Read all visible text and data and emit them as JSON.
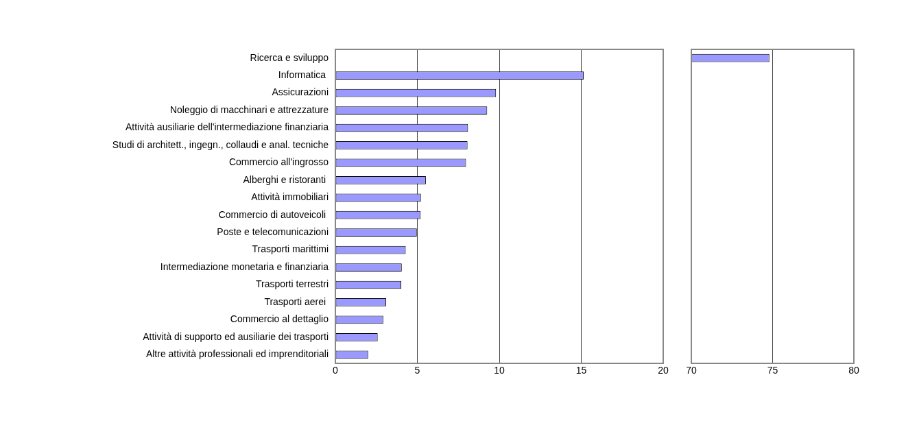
{
  "chart_data": [
    {
      "type": "bar",
      "orientation": "horizontal",
      "categories": [
        "Ricerca e sviluppo",
        "Informatica ",
        "Assicurazioni",
        "Noleggio di macchinari e attrezzature",
        "Attività ausiliarie dell'intermediazione finanziaria",
        "Studi di architett., ingegn., collaudi e anal. tecniche",
        "Commercio all'ingrosso",
        "Alberghi e ristoranti ",
        "Attività immobiliari",
        "Commercio di autoveicoli ",
        "Poste e telecomunicazioni",
        "Trasporti marittimi",
        "Intermediazione monetaria e finanziaria",
        "Trasporti terrestri",
        "Trasporti aerei ",
        "Commercio al dettaglio",
        "Attività di supporto ed ausiliarie dei trasporti",
        "Altre attività professionali ed imprenditoriali"
      ],
      "values": [
        null,
        15.15,
        9.8,
        9.26,
        8.09,
        8.06,
        7.97,
        5.52,
        5.22,
        5.2,
        4.97,
        4.29,
        4.05,
        4.02,
        3.1,
        2.92,
        2.58,
        2.0
      ],
      "color": "#9999ff",
      "xlim": [
        0,
        20
      ],
      "xticks": [
        0,
        5,
        10,
        15,
        20
      ],
      "grid": "x"
    },
    {
      "type": "bar",
      "orientation": "horizontal",
      "categories": [
        null,
        null,
        null,
        null,
        null,
        null,
        null,
        null,
        null,
        null,
        null,
        null,
        null,
        null,
        null,
        null,
        null,
        null
      ],
      "values": [
        74.8,
        null,
        null,
        null,
        null,
        null,
        null,
        null,
        null,
        null,
        null,
        null,
        null,
        null,
        null,
        null,
        null,
        null
      ],
      "color": "#9999ff",
      "xlim": [
        70,
        80
      ],
      "xticks": [
        70,
        75,
        80
      ],
      "grid": "x",
      "tick_labels": "x"
    }
  ]
}
